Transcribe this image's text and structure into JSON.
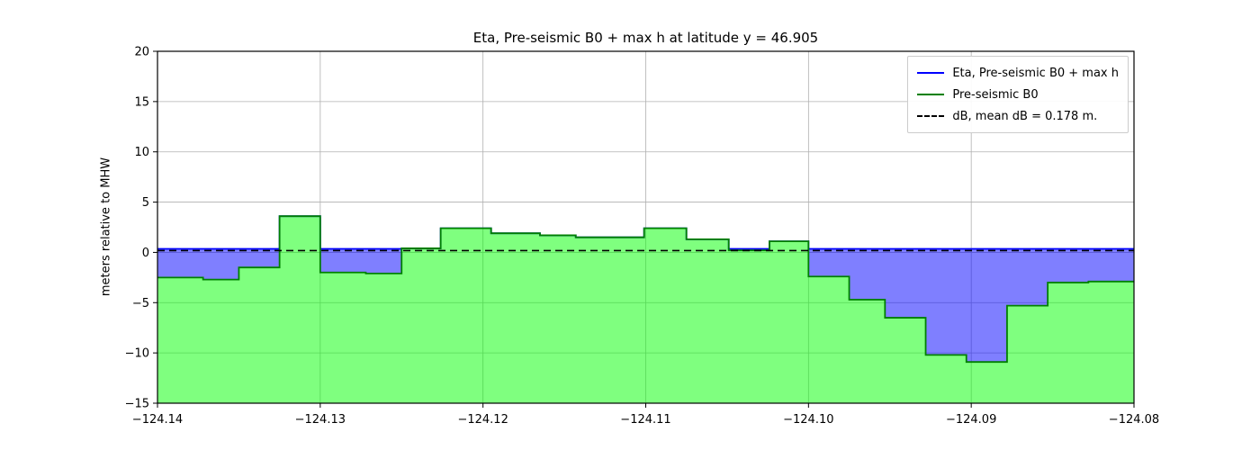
{
  "chart_data": {
    "type": "area",
    "title": "Eta, Pre-seismic B0 + max h at latitude y = 46.905",
    "xlabel": "",
    "ylabel": "meters relative to MHW",
    "xlim": [
      -124.14,
      -124.08
    ],
    "ylim": [
      -15,
      20
    ],
    "xticks": [
      -124.14,
      -124.13,
      -124.12,
      -124.11,
      -124.1,
      -124.09,
      -124.08
    ],
    "xtick_labels": [
      "−124.14",
      "−124.13",
      "−124.12",
      "−124.11",
      "−124.10",
      "−124.09",
      "−124.08"
    ],
    "yticks": [
      -15,
      -10,
      -5,
      0,
      5,
      10,
      15,
      20
    ],
    "ytick_labels": [
      "−15",
      "−10",
      "−5",
      "0",
      "5",
      "10",
      "15",
      "20"
    ],
    "grid": true,
    "grid_color": "#b0b0b0",
    "background_color": "#ffffff",
    "legend": {
      "position": "upper right",
      "entries": [
        {
          "label": "Eta, Pre-seismic B0 + max h",
          "color": "#0000ff",
          "line_style": "solid"
        },
        {
          "label": "Pre-seismic B0",
          "color": "#008000",
          "line_style": "solid"
        },
        {
          "label": "dB, mean dB = 0.178 m.",
          "color": "#000000",
          "line_style": "dashed"
        }
      ]
    },
    "series": [
      {
        "name": "Eta, Pre-seismic B0 + max h",
        "type": "step-line",
        "color": "#0000ff",
        "fill_color": "#0000ff",
        "fill_opacity": 0.5,
        "constant_value": 0.35
      },
      {
        "name": "Pre-seismic B0",
        "type": "step-area",
        "color": "#008000",
        "fill_color": "#00ff00",
        "fill_opacity": 0.5,
        "x_edges": [
          -124.14,
          -124.1372,
          -124.135,
          -124.1325,
          -124.13,
          -124.1272,
          -124.125,
          -124.1226,
          -124.1195,
          -124.1165,
          -124.1143,
          -124.1101,
          -124.1075,
          -124.1049,
          -124.1024,
          -124.1,
          -124.0975,
          -124.0953,
          -124.0928,
          -124.0903,
          -124.0878,
          -124.0853,
          -124.0828,
          -124.08
        ],
        "values": [
          -2.5,
          -2.7,
          -1.5,
          3.6,
          -2.0,
          -2.1,
          0.4,
          2.4,
          1.9,
          1.7,
          1.5,
          2.4,
          1.3,
          0.2,
          1.1,
          -2.4,
          -4.7,
          -6.5,
          -10.2,
          -10.9,
          -5.3,
          -3.0,
          -2.9
        ]
      },
      {
        "name": "dB",
        "type": "hline-dashed",
        "color": "#000000",
        "value": 0.178
      }
    ]
  }
}
